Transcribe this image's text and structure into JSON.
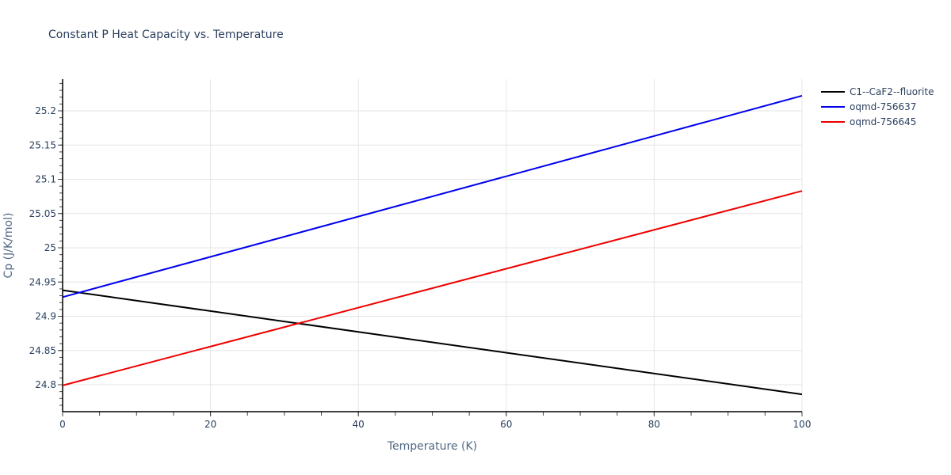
{
  "chart_data": {
    "type": "line",
    "title": "Constant P Heat Capacity vs. Temperature",
    "xlabel": "Temperature (K)",
    "ylabel": "Cp (J/K/mol)",
    "xlim": [
      0,
      100
    ],
    "ylim": [
      24.76,
      25.245
    ],
    "x_ticks": [
      "0",
      "20",
      "40",
      "60",
      "80",
      "100"
    ],
    "y_ticks": [
      "24.8",
      "24.85",
      "24.9",
      "24.95",
      "25",
      "25.05",
      "25.1",
      "25.15",
      "25.2"
    ],
    "grid": true,
    "legend_position": "right",
    "x": [
      0,
      100
    ],
    "series": [
      {
        "name": "C1--CaF2--fluorite",
        "color": "#000000",
        "values": [
          24.938,
          24.786
        ]
      },
      {
        "name": "oqmd-756637",
        "color": "#0000ee",
        "values": [
          24.928,
          25.222
        ]
      },
      {
        "name": "oqmd-756645",
        "color": "#ee0000",
        "values": [
          24.799,
          25.083
        ]
      }
    ]
  },
  "legend": [
    {
      "label": "C1--CaF2--fluorite",
      "color": "#000000"
    },
    {
      "label": "oqmd-756637",
      "color": "#0000ee"
    },
    {
      "label": "oqmd-756645",
      "color": "#ee0000"
    }
  ]
}
